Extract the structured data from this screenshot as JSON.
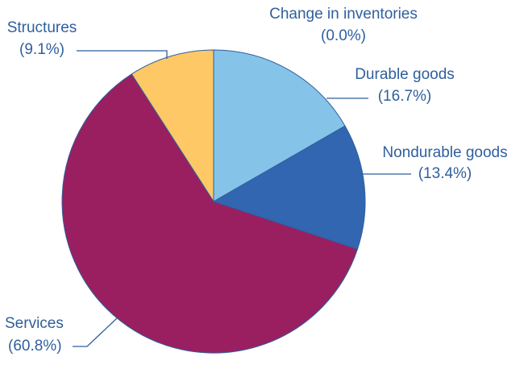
{
  "chart_data": {
    "type": "pie",
    "categories": [
      "Change in inventories",
      "Durable goods",
      "Nondurable goods",
      "Services",
      "Structures"
    ],
    "values": [
      0.0,
      16.7,
      13.4,
      60.8,
      9.1
    ],
    "value_labels": [
      "(0.0%)",
      "(16.7%)",
      "(13.4%)",
      "(60.8%)",
      "(9.1%)"
    ],
    "colors": [
      "#85c3e8",
      "#85c3e8",
      "#3366b0",
      "#9a1f60",
      "#fdc865"
    ]
  }
}
